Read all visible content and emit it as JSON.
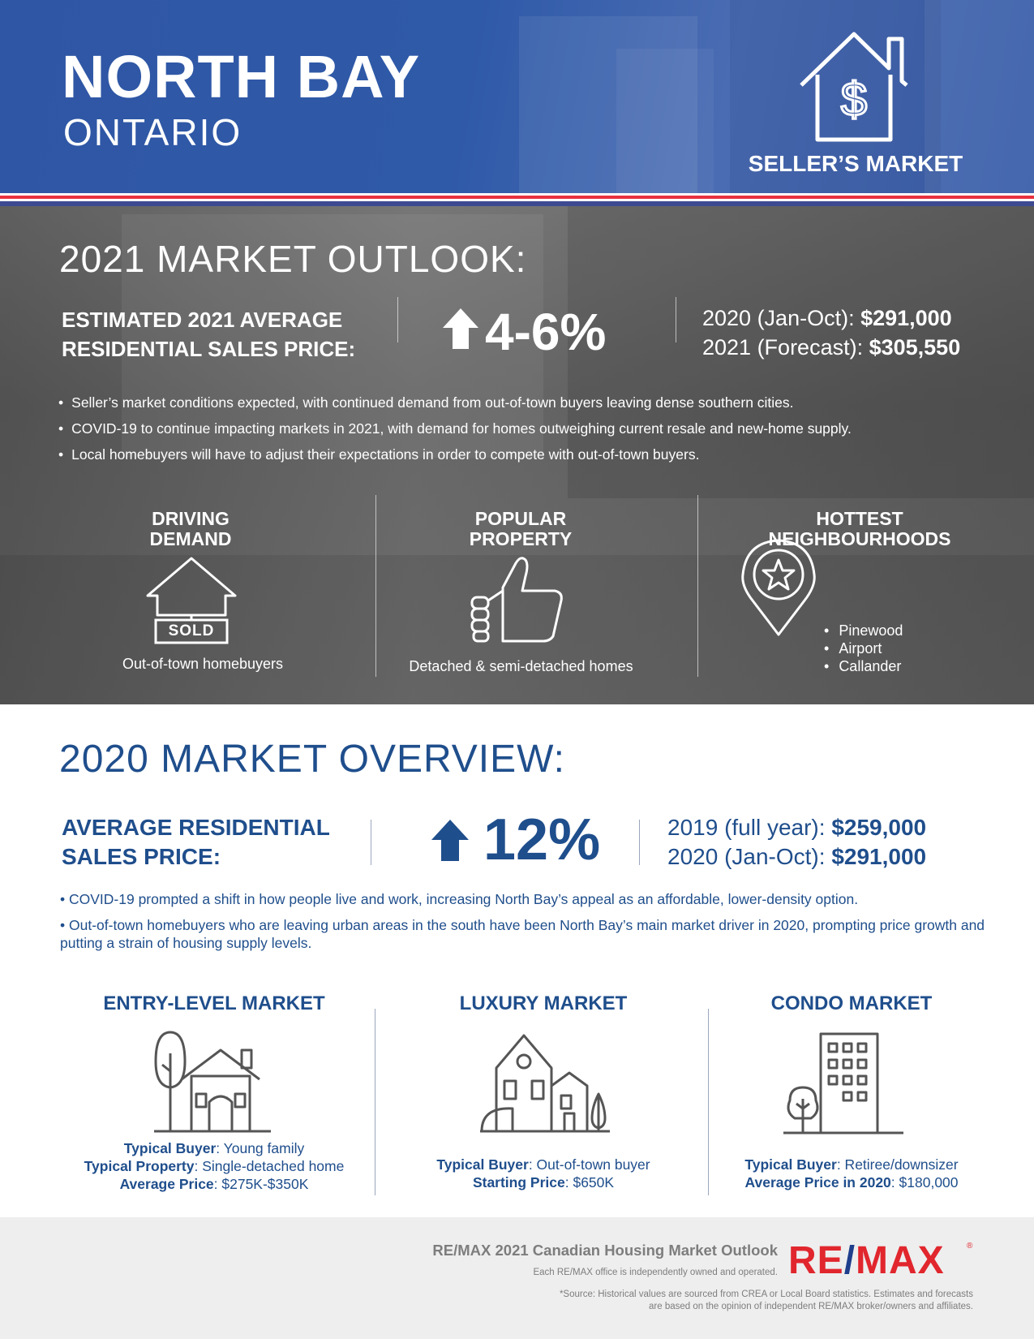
{
  "header": {
    "city": "NORTH BAY",
    "province": "ONTARIO",
    "market_type": "SELLER’S MARKET"
  },
  "outlook": {
    "title": "2021 MARKET OUTLOOK:",
    "label_line1": "ESTIMATED 2021 AVERAGE",
    "label_line2": "RESIDENTIAL SALES PRICE:",
    "change": "4-6%",
    "price1_label": "2020 (Jan-Oct): ",
    "price1_value": "$291,000",
    "price2_label": "2021 (Forecast): ",
    "price2_value": "$305,550",
    "bullets": [
      "Seller’s market conditions expected, with continued demand from out-of-town buyers leaving dense southern cities.",
      "COVID-19 to continue impacting markets in 2021, with demand for homes outweighing current resale and new-home supply.",
      "Local homebuyers will have to adjust their expectations in order to compete with out-of-town buyers."
    ],
    "driving_demand": {
      "title1": "DRIVING",
      "title2": "DEMAND",
      "sign": "SOLD",
      "caption": "Out-of-town homebuyers"
    },
    "popular_property": {
      "title1": "POPULAR",
      "title2": "PROPERTY",
      "caption": "Detached & semi-detached homes"
    },
    "hottest": {
      "title1": "HOTTEST",
      "title2": "NEIGHBOURHOODS",
      "items": [
        "Pinewood",
        "Airport",
        "Callander"
      ]
    }
  },
  "overview": {
    "title": "2020 MARKET OVERVIEW:",
    "label_line1": "AVERAGE RESIDENTIAL",
    "label_line2": "SALES PRICE:",
    "change": "12%",
    "price1_label": "2019 (full year): ",
    "price1_value": "$259,000",
    "price2_label": "2020 (Jan-Oct): ",
    "price2_value": "$291,000",
    "bullets": [
      "COVID-19 prompted a shift in how people live and work, increasing North Bay’s appeal as an affordable, lower-density option.",
      "Out-of-town homebuyers who are leaving urban areas in the south have been North Bay’s main market driver in 2020, prompting price growth and putting a strain of housing supply levels."
    ],
    "entry": {
      "title": "ENTRY-LEVEL MARKET",
      "l1_key": "Typical Buyer",
      "l1_val": ": Young family",
      "l2_key": "Typical Property",
      "l2_val": ": Single-detached home",
      "l3_key": "Average Price",
      "l3_val": ": $275K-$350K"
    },
    "luxury": {
      "title": "LUXURY MARKET",
      "l1_key": "Typical Buyer",
      "l1_val": ": Out-of-town buyer",
      "l2_key": "Starting Price",
      "l2_val": ": $650K"
    },
    "condo": {
      "title": "CONDO MARKET",
      "l1_key": "Typical Buyer",
      "l1_val": ": Retiree/downsizer",
      "l2_key": "Average Price in 2020",
      "l2_val": ": $180,000"
    }
  },
  "footer": {
    "title": "RE/MAX 2021 Canadian Housing Market Outlook",
    "subtitle": "Each RE/MAX office is independently owned and operated.",
    "source1": "*Source: Historical values are sourced from CREA or Local Board statistics. Estimates and forecasts",
    "source2": "are based on the opinion of independent RE/MAX broker/owners and affiliates.",
    "logo_left": "RE",
    "logo_slash": "/",
    "logo_right": "MAX",
    "logo_reg": "®"
  },
  "colors": {
    "header_blue": "#2f56a4",
    "overview_blue": "#1f4e8c",
    "remax_red": "#e1262d",
    "remax_blue": "#1f3f8c"
  }
}
